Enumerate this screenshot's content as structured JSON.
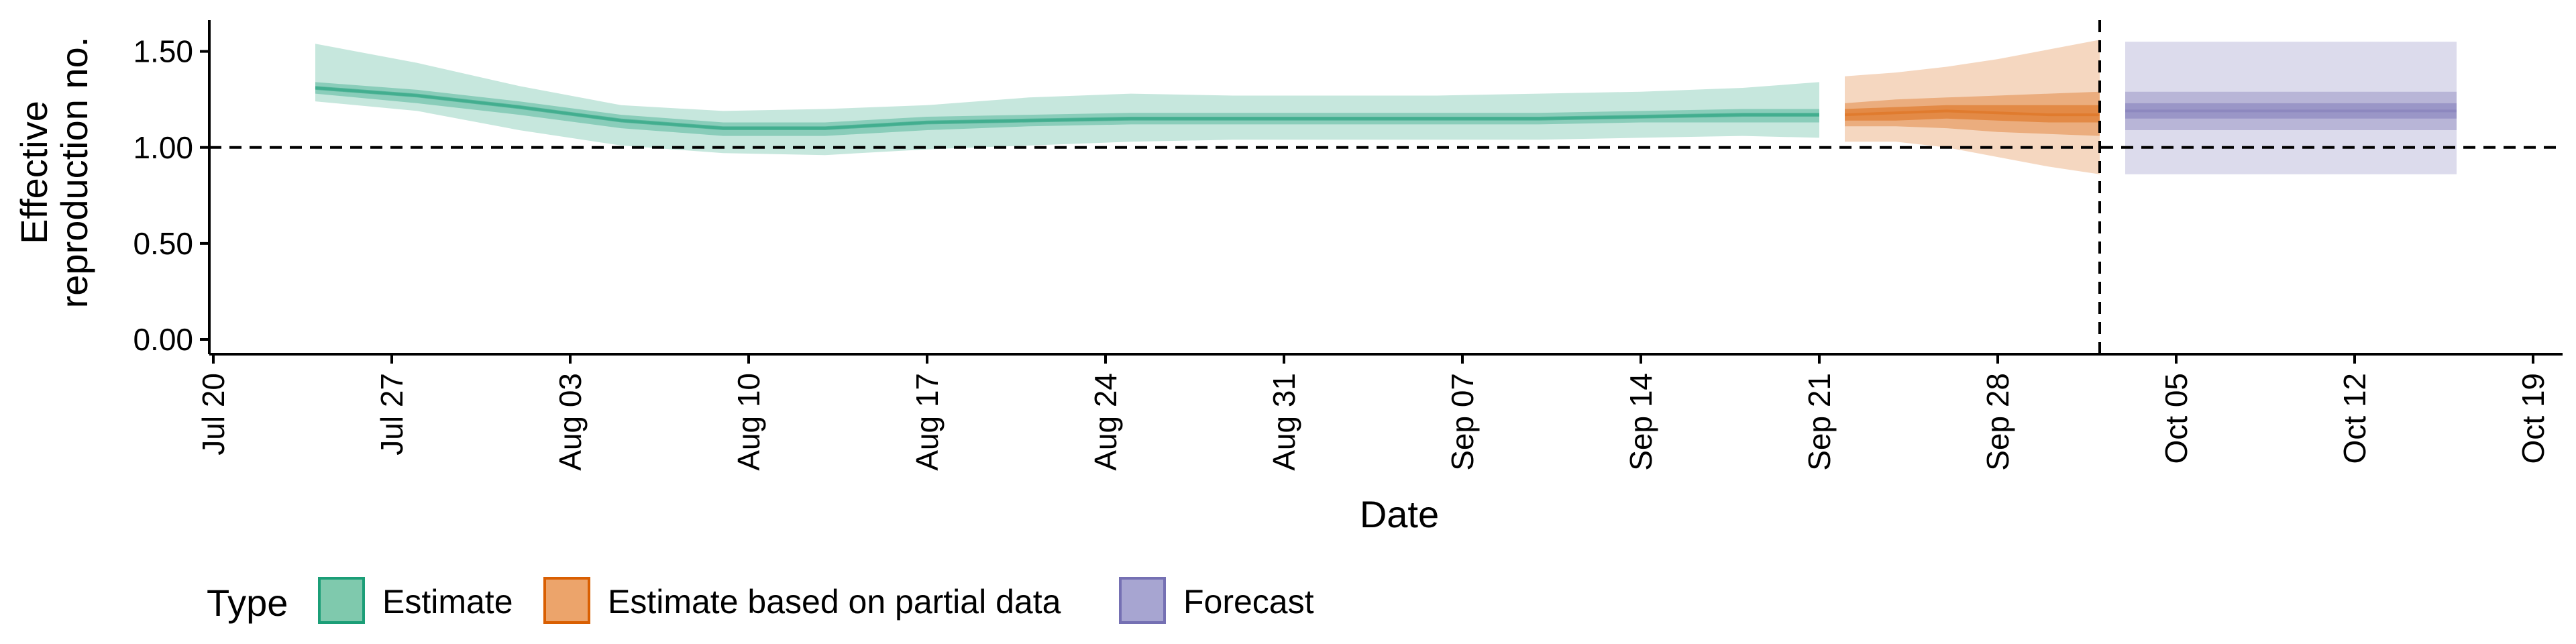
{
  "chart_data": {
    "type": "area",
    "xlabel": "Date",
    "ylabel_lines": [
      "Effective",
      "reproduction no."
    ],
    "ylim": [
      0,
      1.6
    ],
    "yticks": [
      0,
      0.5,
      1.0,
      1.5
    ],
    "ytick_labels": [
      "0.00",
      "0.50",
      "1.00",
      "1.50"
    ],
    "x_range": [
      "2020-07-20",
      "2020-10-20"
    ],
    "xticks": [
      "2020-07-20",
      "2020-07-27",
      "2020-08-03",
      "2020-08-10",
      "2020-08-17",
      "2020-08-24",
      "2020-08-31",
      "2020-09-07",
      "2020-09-14",
      "2020-09-21",
      "2020-09-28",
      "2020-10-05",
      "2020-10-12",
      "2020-10-19"
    ],
    "xtick_labels": [
      "Jul 20",
      "Jul 27",
      "Aug 03",
      "Aug 10",
      "Aug 17",
      "Aug 24",
      "Aug 31",
      "Sep 07",
      "Sep 14",
      "Sep 21",
      "Sep 28",
      "Oct 05",
      "Oct 12",
      "Oct 19"
    ],
    "reference_line_y": 1.0,
    "reference_line_date": "2020-10-02",
    "legend": {
      "title": "Type",
      "position": "bottom",
      "entries": [
        {
          "label": "Estimate",
          "fill": "#7fc9ad",
          "stroke": "#1b9e77"
        },
        {
          "label": "Estimate based on partial data",
          "fill": "#eca46b",
          "stroke": "#d95f02"
        },
        {
          "label": "Forecast",
          "fill": "#a7a5d1",
          "stroke": "#7570b3"
        }
      ]
    },
    "series": [
      {
        "name": "Estimate",
        "color": "#1b9e77",
        "x": [
          "2020-07-24",
          "2020-07-28",
          "2020-08-01",
          "2020-08-05",
          "2020-08-09",
          "2020-08-13",
          "2020-08-17",
          "2020-08-21",
          "2020-08-25",
          "2020-08-29",
          "2020-09-02",
          "2020-09-06",
          "2020-09-10",
          "2020-09-14",
          "2020-09-18",
          "2020-09-21"
        ],
        "median": [
          1.31,
          1.27,
          1.21,
          1.14,
          1.1,
          1.1,
          1.13,
          1.14,
          1.15,
          1.15,
          1.15,
          1.15,
          1.15,
          1.16,
          1.17,
          1.17
        ],
        "lower_90": [
          1.24,
          1.19,
          1.09,
          1.01,
          0.97,
          0.96,
          0.99,
          1.01,
          1.03,
          1.04,
          1.04,
          1.04,
          1.04,
          1.05,
          1.06,
          1.05
        ],
        "upper_90": [
          1.54,
          1.44,
          1.32,
          1.22,
          1.19,
          1.2,
          1.22,
          1.26,
          1.28,
          1.27,
          1.27,
          1.27,
          1.28,
          1.29,
          1.31,
          1.34
        ],
        "lower_50": [
          1.28,
          1.23,
          1.17,
          1.1,
          1.06,
          1.06,
          1.09,
          1.11,
          1.12,
          1.12,
          1.12,
          1.12,
          1.12,
          1.13,
          1.13,
          1.13
        ],
        "upper_50": [
          1.34,
          1.3,
          1.24,
          1.17,
          1.13,
          1.13,
          1.16,
          1.17,
          1.18,
          1.18,
          1.18,
          1.18,
          1.18,
          1.19,
          1.2,
          1.2
        ],
        "lower_20": [
          1.3,
          1.26,
          1.2,
          1.13,
          1.09,
          1.09,
          1.12,
          1.13,
          1.14,
          1.14,
          1.14,
          1.14,
          1.14,
          1.15,
          1.16,
          1.16
        ],
        "upper_20": [
          1.32,
          1.28,
          1.22,
          1.15,
          1.11,
          1.11,
          1.14,
          1.15,
          1.16,
          1.16,
          1.16,
          1.16,
          1.16,
          1.17,
          1.18,
          1.18
        ]
      },
      {
        "name": "Estimate based on partial data",
        "color": "#d95f02",
        "x": [
          "2020-09-22",
          "2020-09-24",
          "2020-09-26",
          "2020-09-28",
          "2020-09-30",
          "2020-10-02"
        ],
        "median": [
          1.17,
          1.18,
          1.19,
          1.18,
          1.17,
          1.17
        ],
        "lower_90": [
          1.03,
          1.03,
          1.0,
          0.95,
          0.9,
          0.86
        ],
        "upper_90": [
          1.37,
          1.39,
          1.42,
          1.46,
          1.51,
          1.56
        ],
        "lower_50": [
          1.11,
          1.11,
          1.1,
          1.08,
          1.07,
          1.06
        ],
        "upper_50": [
          1.23,
          1.25,
          1.26,
          1.27,
          1.28,
          1.29
        ],
        "lower_20": [
          1.14,
          1.14,
          1.15,
          1.14,
          1.13,
          1.13
        ],
        "upper_20": [
          1.2,
          1.21,
          1.22,
          1.22,
          1.22,
          1.22
        ]
      },
      {
        "name": "Forecast",
        "color": "#7570b3",
        "x": [
          "2020-10-03",
          "2020-10-16"
        ],
        "median": [
          1.19,
          1.19
        ],
        "lower_90": [
          0.86,
          0.86
        ],
        "upper_90": [
          1.55,
          1.55
        ],
        "lower_50": [
          1.09,
          1.09
        ],
        "upper_50": [
          1.29,
          1.29
        ],
        "lower_20": [
          1.15,
          1.15
        ],
        "upper_20": [
          1.23,
          1.23
        ]
      }
    ]
  }
}
